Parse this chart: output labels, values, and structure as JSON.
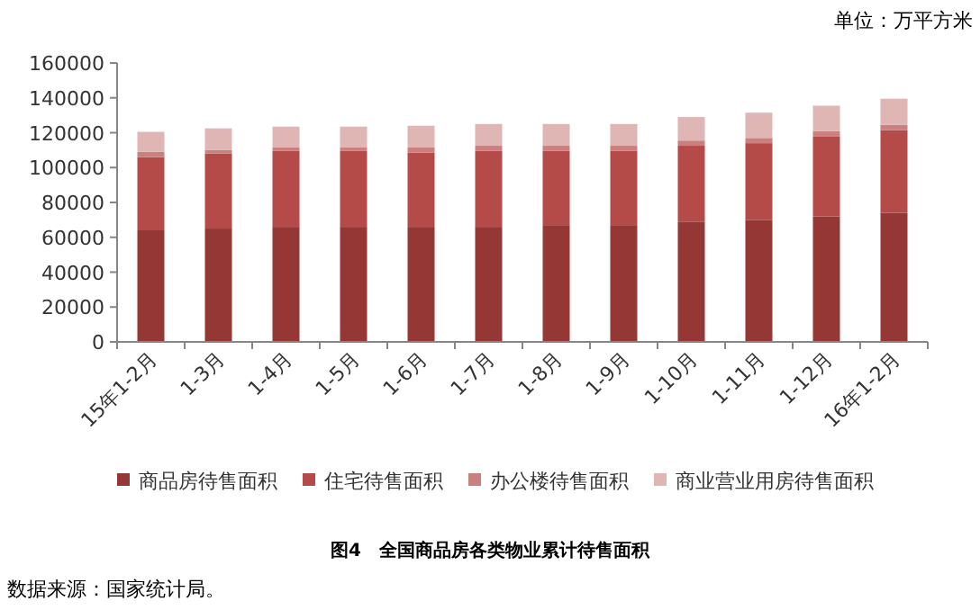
{
  "chart_data": {
    "type": "bar",
    "stacked": true,
    "title": "图4　全国商品房各类物业累计待售面积",
    "ylabel": "单位：万平方米",
    "annotations": [
      "数据来源：国家统计局。"
    ],
    "categories": [
      "15年1-2月",
      "1-3月",
      "1-4月",
      "1-5月",
      "1-6月",
      "1-7月",
      "1-8月",
      "1-9月",
      "1-10月",
      "1-11月",
      "1-12月",
      "16年1-2月"
    ],
    "series": [
      {
        "name": "商品房待售面积",
        "color": "#953735",
        "values": [
          64000,
          65000,
          66000,
          66000,
          66000,
          66000,
          67000,
          67000,
          69000,
          70000,
          72000,
          74000
        ]
      },
      {
        "name": "住宅待售面积",
        "color": "#b44b48",
        "values": [
          42000,
          43000,
          43500,
          43500,
          42500,
          43500,
          42500,
          42500,
          43500,
          44000,
          46000,
          47500
        ]
      },
      {
        "name": "办公楼待售面积",
        "color": "#c9807e",
        "values": [
          3000,
          2000,
          2000,
          2000,
          3000,
          3000,
          3000,
          3000,
          3000,
          3000,
          3000,
          3000
        ]
      },
      {
        "name": "商业营业用房待售面积",
        "color": "#e0b6b5",
        "values": [
          11500,
          12500,
          12000,
          12000,
          12500,
          12500,
          12500,
          12500,
          13500,
          14500,
          14500,
          15000
        ]
      }
    ],
    "ylim": [
      0,
      160000
    ],
    "yticks": [
      0,
      20000,
      40000,
      60000,
      80000,
      100000,
      120000,
      140000,
      160000
    ],
    "grid": false,
    "legend": "bottom"
  }
}
